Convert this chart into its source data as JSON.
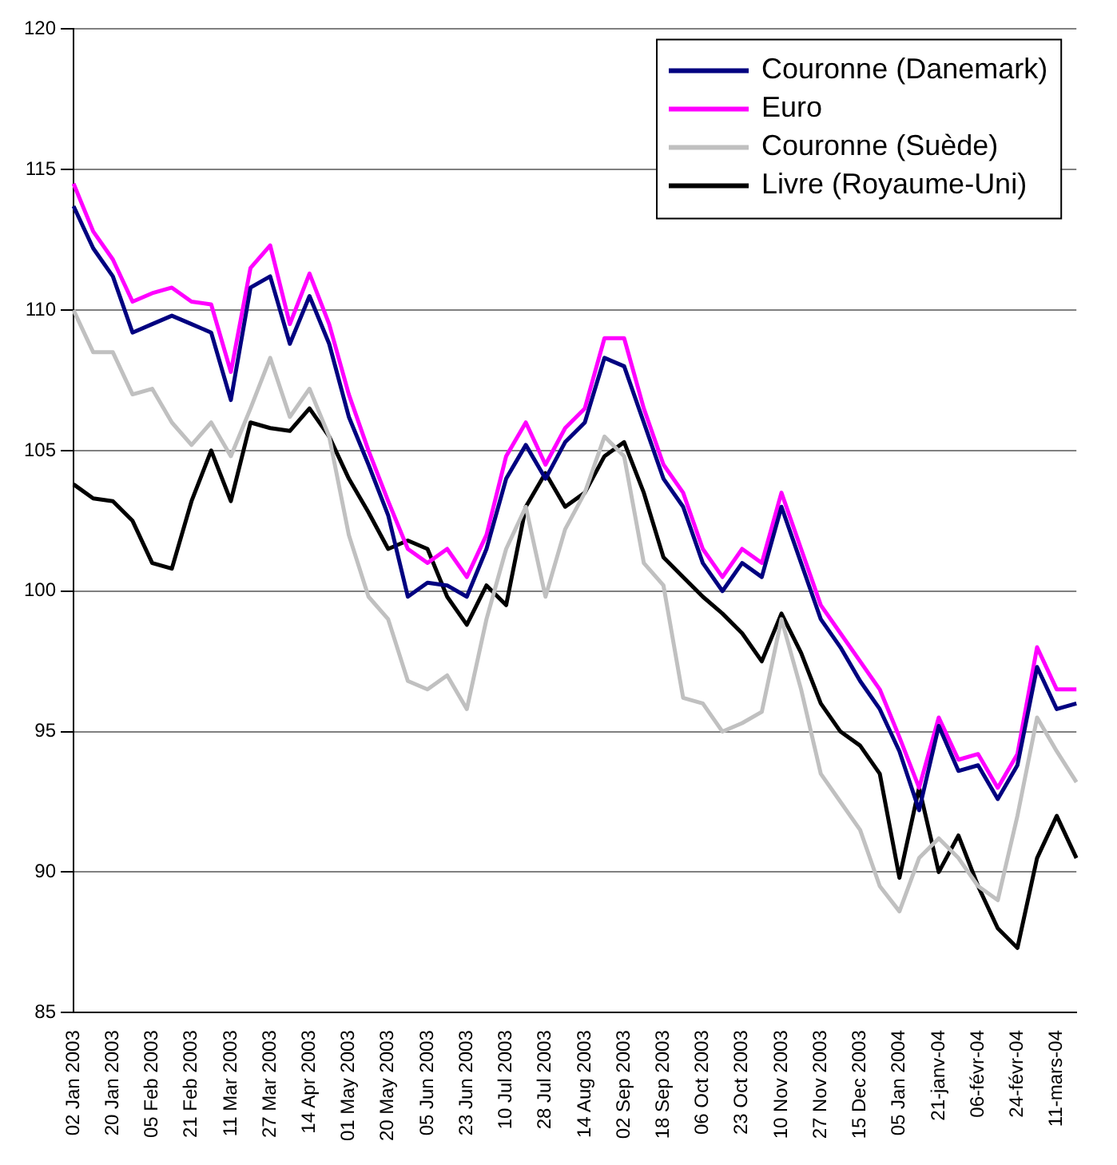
{
  "chart_data": {
    "type": "line",
    "categories": [
      "02 Jan 2003",
      null,
      "20 Jan 2003",
      null,
      "05 Feb 2003",
      null,
      "21 Feb 2003",
      null,
      "11 Mar 2003",
      null,
      "27 Mar 2003",
      null,
      "14 Apr 2003",
      null,
      "01 May 2003",
      null,
      "20 May 2003",
      null,
      "05 Jun 2003",
      null,
      "23 Jun 2003",
      null,
      "10 Jul 2003",
      null,
      "28 Jul 2003",
      null,
      "14 Aug 2003",
      null,
      "02 Sep 2003",
      null,
      "18 Sep 2003",
      null,
      "06 Oct 2003",
      null,
      "23 Oct 2003",
      null,
      "10 Nov 2003",
      null,
      "27 Nov 2003",
      null,
      "15 Dec 2003",
      null,
      "05 Jan 2004",
      null,
      "21-janv-04",
      null,
      "06-févr-04",
      null,
      "24-févr-04",
      null,
      "11-mars-04",
      null
    ],
    "series": [
      {
        "name": "Couronne (Danemark)",
        "color": "#000080",
        "values": [
          113.7,
          112.2,
          111.2,
          109.2,
          109.5,
          109.8,
          109.5,
          109.2,
          106.8,
          110.8,
          111.2,
          108.8,
          110.5,
          108.8,
          106.2,
          104.5,
          102.7,
          99.8,
          100.3,
          100.2,
          99.8,
          101.5,
          104,
          105.2,
          104,
          105.3,
          106,
          108.3,
          108,
          106,
          104,
          103,
          101,
          100,
          101,
          100.5,
          103,
          101,
          99,
          98,
          96.8,
          95.8,
          94.3,
          92.2,
          95.2,
          93.6,
          93.8,
          92.6,
          93.8,
          97.3,
          95.8,
          96
        ]
      },
      {
        "name": "Euro",
        "color": "#ff00ff",
        "values": [
          114.5,
          112.8,
          111.8,
          110.3,
          110.6,
          110.8,
          110.3,
          110.2,
          107.8,
          111.5,
          112.3,
          109.5,
          111.3,
          109.5,
          107,
          105,
          103.2,
          101.5,
          101,
          101.5,
          100.5,
          102,
          104.8,
          106,
          104.5,
          105.8,
          106.5,
          109,
          109,
          106.5,
          104.5,
          103.5,
          101.5,
          100.5,
          101.5,
          101,
          103.5,
          101.5,
          99.5,
          98.5,
          97.5,
          96.5,
          94.8,
          93,
          95.5,
          94,
          94.2,
          93,
          94.2,
          98,
          96.5,
          96.5
        ]
      },
      {
        "name": "Couronne (Suède)",
        "color": "#c0c0c0",
        "values": [
          110,
          108.5,
          108.5,
          107,
          107.2,
          106,
          105.2,
          106,
          104.8,
          106.5,
          108.3,
          106.2,
          107.2,
          105.5,
          102,
          99.8,
          99,
          96.8,
          96.5,
          97,
          95.8,
          99,
          101.5,
          103,
          99.8,
          102.2,
          103.5,
          105.5,
          104.8,
          101,
          100.2,
          96.2,
          96,
          95,
          95.3,
          95.7,
          99,
          96.5,
          93.5,
          92.5,
          91.5,
          89.5,
          88.6,
          90.5,
          91.2,
          90.5,
          89.5,
          89,
          92,
          95.5,
          94.3,
          93.2
        ]
      },
      {
        "name": "Livre (Royaume-Uni)",
        "color": "#000000",
        "values": [
          103.8,
          103.3,
          103.2,
          102.5,
          101,
          100.8,
          103.2,
          105,
          103.2,
          106,
          105.8,
          105.7,
          106.5,
          105.5,
          104,
          102.8,
          101.5,
          101.8,
          101.5,
          99.8,
          98.8,
          100.2,
          99.5,
          103,
          104.2,
          103,
          103.5,
          104.8,
          105.3,
          103.5,
          101.2,
          100.5,
          99.8,
          99.2,
          98.5,
          97.5,
          99.2,
          97.8,
          96,
          95,
          94.5,
          93.5,
          89.8,
          93,
          90,
          91.3,
          89.5,
          88,
          87.3,
          90.5,
          92,
          90.5
        ]
      }
    ],
    "ylim": [
      85,
      120
    ],
    "yticks": [
      85,
      90,
      95,
      100,
      105,
      110,
      115,
      120
    ],
    "grid": "y",
    "legend": "top right"
  }
}
